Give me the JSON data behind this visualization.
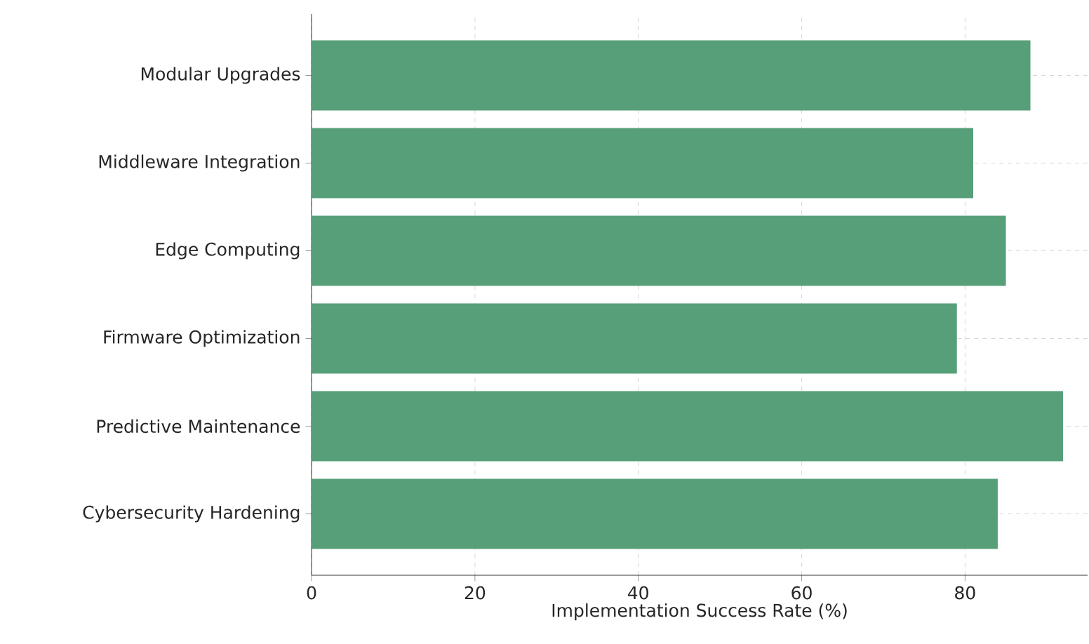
{
  "chart_data": {
    "type": "bar",
    "orientation": "horizontal",
    "xlabel": "Implementation Success Rate (%)",
    "categories": [
      "Modular Upgrades",
      "Middleware Integration",
      "Edge Computing",
      "Firmware Optimization",
      "Predictive Maintenance",
      "Cybersecurity Hardening"
    ],
    "values": [
      88,
      81,
      85,
      79,
      92,
      84
    ],
    "color": "#579f78",
    "xlim": [
      0,
      95
    ],
    "xticks": [
      0,
      20,
      40,
      60,
      80
    ],
    "grid": true
  }
}
